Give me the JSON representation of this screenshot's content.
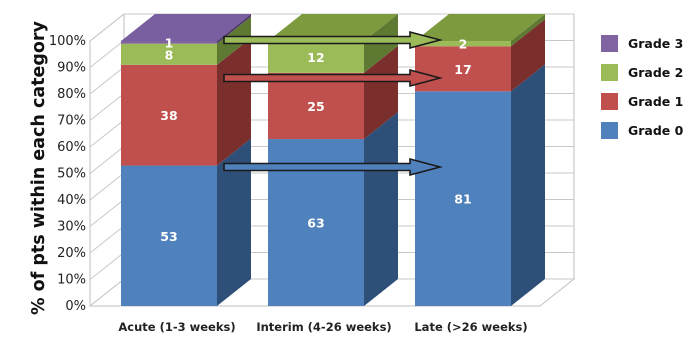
{
  "chart_data": {
    "type": "bar",
    "stacked": true,
    "three_d": true,
    "categories": [
      "Acute (1-3 weeks)",
      "Interim (4-26 weeks)",
      "Late (>26 weeks)"
    ],
    "series": [
      {
        "name": "Grade 0",
        "values": [
          53,
          63,
          81
        ],
        "color": "#4f81bd",
        "side": "#2e5078",
        "top": "#6c98d0"
      },
      {
        "name": "Grade 1",
        "values": [
          38,
          25,
          17
        ],
        "color": "#c0504d",
        "side": "#7a2f2d",
        "top": "#d06b69"
      },
      {
        "name": "Grade 2",
        "values": [
          8,
          12,
          2
        ],
        "color": "#9bbb59",
        "side": "#5e7a32",
        "top": "#7d9a3f"
      },
      {
        "name": "Grade 3",
        "values": [
          1,
          0,
          0
        ],
        "color": "#8064a2",
        "side": "#4f3a6b",
        "top": "#7a5fa0"
      }
    ],
    "data_labels": [
      [
        "53",
        "38",
        "8",
        "1"
      ],
      [
        "63",
        "25",
        "12",
        ""
      ],
      [
        "81",
        "17",
        "2",
        ""
      ]
    ],
    "ylabel": "% of pts within each category",
    "ylim": [
      0,
      100
    ],
    "yticks": [
      "0%",
      "10%",
      "20%",
      "30%",
      "40%",
      "50%",
      "60%",
      "70%",
      "80%",
      "90%",
      "100%"
    ],
    "grid": true,
    "legend_position": "right",
    "legend_order": [
      "Grade 3",
      "Grade 2",
      "Grade 1",
      "Grade 0"
    ],
    "arrow_colors": {
      "Grade 2": "#9bbb59",
      "Grade 1": "#c0504d",
      "Grade 0": "#4f81bd"
    }
  }
}
